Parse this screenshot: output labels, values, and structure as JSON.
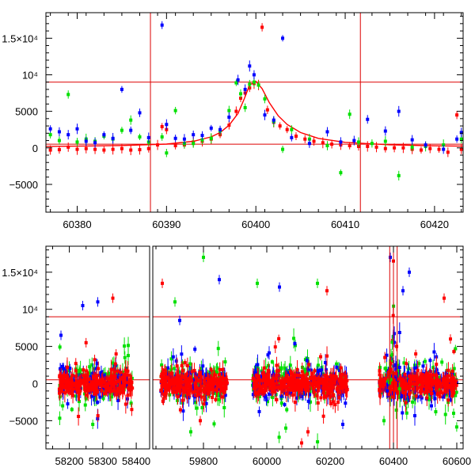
{
  "chart_data": [
    {
      "type": "scatter",
      "title": "",
      "xlabel": "",
      "ylabel": "",
      "xlim": [
        60376.5,
        60423.2
      ],
      "ylim": [
        -8800,
        18500
      ],
      "xticks": [
        60380,
        60390,
        60400,
        60410,
        60420
      ],
      "xtick_labels": [
        "60380",
        "60390",
        "60400",
        "60410",
        "60420"
      ],
      "yticks": [
        -5000,
        0,
        5000,
        10000,
        15000
      ],
      "ytick_labels": [
        "−5000",
        "0",
        "5000",
        "10⁴",
        "1.5×10⁴"
      ],
      "hlines": [
        9000,
        500
      ],
      "vlines": [
        60388.2,
        60411.7
      ],
      "colors": {
        "red": "#ff0000",
        "green": "#00e000",
        "blue": "#0000ff",
        "model": "#ff0000",
        "guide": "#dd0000"
      },
      "model_curve": {
        "x": [
          60376.5,
          60380,
          60385,
          60390,
          60393,
          60395,
          60396,
          60397,
          60398,
          60398.7,
          60399.3,
          60400,
          60400.7,
          60401.5,
          60402.5,
          60403.5,
          60405,
          60407,
          60410,
          60415,
          60420,
          60423.2
        ],
        "y": [
          200,
          240,
          320,
          520,
          900,
          1500,
          2100,
          3100,
          4700,
          6700,
          8600,
          9100,
          8100,
          6200,
          4400,
          3200,
          2100,
          1300,
          750,
          420,
          280,
          240
        ]
      },
      "series": [
        {
          "color": "red",
          "points": [
            [
              60377,
              -300
            ],
            [
              60378,
              -250
            ],
            [
              60379,
              100
            ],
            [
              60380,
              -200
            ],
            [
              60381,
              -100
            ],
            [
              60382,
              -200
            ],
            [
              60383,
              -300
            ],
            [
              60384,
              -200
            ],
            [
              60385,
              -100
            ],
            [
              60386,
              -300
            ],
            [
              60387,
              -250
            ],
            [
              60388,
              -100
            ],
            [
              60389,
              400
            ],
            [
              60389.5,
              2900
            ],
            [
              60390,
              2500
            ],
            [
              60391,
              300
            ],
            [
              60392,
              400
            ],
            [
              60393,
              800
            ],
            [
              60394,
              900
            ],
            [
              60395,
              1200
            ],
            [
              60396,
              1800
            ],
            [
              60397,
              3100
            ],
            [
              60397.8,
              5000
            ],
            [
              60398.3,
              6800
            ],
            [
              60398.8,
              7500
            ],
            [
              60399.3,
              8200
            ],
            [
              60399.8,
              8800
            ],
            [
              60400.3,
              8600
            ],
            [
              60400.7,
              16500
            ],
            [
              60401.3,
              5200
            ],
            [
              60402,
              3500
            ],
            [
              60402.7,
              3000
            ],
            [
              60403.5,
              2500
            ],
            [
              60404.5,
              1600
            ],
            [
              60405.5,
              1200
            ],
            [
              60406.5,
              900
            ],
            [
              60407.5,
              700
            ],
            [
              60408.5,
              500
            ],
            [
              60409.5,
              400
            ],
            [
              60410.5,
              300
            ],
            [
              60411.5,
              200
            ],
            [
              60412.5,
              200
            ],
            [
              60413.5,
              100
            ],
            [
              60414.5,
              -100
            ],
            [
              60415.5,
              0
            ],
            [
              60416.5,
              0
            ],
            [
              60417.5,
              -200
            ],
            [
              60418.5,
              -300
            ],
            [
              60419.5,
              -100
            ],
            [
              60420.5,
              -200
            ],
            [
              60421.5,
              -600
            ],
            [
              60422.5,
              4500
            ],
            [
              60423,
              -200
            ]
          ]
        },
        {
          "color": "green",
          "points": [
            [
              60377,
              1800
            ],
            [
              60378,
              1000
            ],
            [
              60379,
              7300
            ],
            [
              60380,
              800
            ],
            [
              60381,
              1200
            ],
            [
              60382,
              900
            ],
            [
              60383,
              1600
            ],
            [
              60384,
              1200
            ],
            [
              60385,
              2400
            ],
            [
              60386,
              3800
            ],
            [
              60387,
              1500
            ],
            [
              60388,
              800
            ],
            [
              60389.5,
              1500
            ],
            [
              60390,
              -700
            ],
            [
              60391,
              5100
            ],
            [
              60392,
              600
            ],
            [
              60393,
              600
            ],
            [
              60394,
              1100
            ],
            [
              60395,
              1300
            ],
            [
              60396,
              2300
            ],
            [
              60397,
              5100
            ],
            [
              60397.8,
              8900
            ],
            [
              60398.3,
              7400
            ],
            [
              60398.8,
              5500
            ],
            [
              60399.3,
              8700
            ],
            [
              60399.8,
              9000
            ],
            [
              60400.3,
              8600
            ],
            [
              60401,
              6700
            ],
            [
              60402,
              3600
            ],
            [
              60403,
              -200
            ],
            [
              60404,
              2500
            ],
            [
              60406,
              1200
            ],
            [
              60408,
              300
            ],
            [
              60409.5,
              -3400
            ],
            [
              60410.5,
              4600
            ],
            [
              60411.5,
              800
            ],
            [
              60413,
              600
            ],
            [
              60414.5,
              900
            ],
            [
              60416,
              -3800
            ],
            [
              60417.5,
              100
            ],
            [
              60419,
              200
            ],
            [
              60421,
              400
            ],
            [
              60423,
              1200
            ]
          ]
        },
        {
          "color": "blue",
          "points": [
            [
              60377,
              2600
            ],
            [
              60378,
              2200
            ],
            [
              60379,
              1800
            ],
            [
              60380,
              2600
            ],
            [
              60381,
              900
            ],
            [
              60382,
              700
            ],
            [
              60383,
              1800
            ],
            [
              60384,
              1300
            ],
            [
              60385,
              8000
            ],
            [
              60386,
              2400
            ],
            [
              60387,
              4800
            ],
            [
              60388,
              1400
            ],
            [
              60389.5,
              16800
            ],
            [
              60390,
              3200
            ],
            [
              60391,
              1300
            ],
            [
              60392,
              1200
            ],
            [
              60393,
              1800
            ],
            [
              60394,
              1700
            ],
            [
              60395,
              2700
            ],
            [
              60396,
              2500
            ],
            [
              60397,
              4200
            ],
            [
              60398,
              9300
            ],
            [
              60398.8,
              8000
            ],
            [
              60399.3,
              11200
            ],
            [
              60399.8,
              10000
            ],
            [
              60401,
              4500
            ],
            [
              60402,
              3800
            ],
            [
              60403,
              15000
            ],
            [
              60404,
              1400
            ],
            [
              60406,
              600
            ],
            [
              60408,
              2200
            ],
            [
              60409.5,
              800
            ],
            [
              60411,
              1000
            ],
            [
              60412.5,
              3900
            ],
            [
              60414.5,
              2300
            ],
            [
              60416,
              5000
            ],
            [
              60417.5,
              1100
            ],
            [
              60419,
              400
            ],
            [
              60421,
              -200
            ],
            [
              60422.5,
              1200
            ],
            [
              60423,
              2100
            ]
          ]
        }
      ]
    },
    {
      "type": "scatter",
      "title": "",
      "xlabel": "",
      "ylabel": "",
      "note": "broken x-axis with gaps between observing seasons",
      "segments": [
        {
          "xlim": [
            58130,
            58440
          ],
          "xticks": [
            58200,
            58300,
            58400
          ],
          "xtick_labels": [
            "58200",
            "58300",
            "58400"
          ]
        },
        {
          "xlim": [
            59640,
            60620
          ],
          "xticks": [
            59800,
            60000,
            60200,
            60400,
            60600
          ],
          "xtick_labels": [
            "59800",
            "60000",
            "60200",
            "60400",
            "60600"
          ]
        }
      ],
      "ylim": [
        -8800,
        18500
      ],
      "yticks": [
        -5000,
        0,
        5000,
        10000,
        15000
      ],
      "ytick_labels": [
        "−5000",
        "0",
        "5000",
        "10⁴",
        "1.5×10⁴"
      ],
      "hlines": [
        9000,
        500
      ],
      "vlines": [
        60388.2,
        60400.0,
        60411.7
      ],
      "seasons": [
        {
          "range": [
            58170,
            58390
          ]
        },
        {
          "range": [
            59665,
            59875
          ]
        },
        {
          "range": [
            59955,
            60255
          ]
        },
        {
          "range": [
            60355,
            60600
          ]
        }
      ],
      "scatter_amplitude": {
        "red": 1600,
        "green": 2600,
        "blue": 2200
      },
      "outliers": [
        {
          "color": "blue",
          "x": 58175,
          "y": 6500
        },
        {
          "color": "blue",
          "x": 58240,
          "y": 10500
        },
        {
          "color": "red",
          "x": 58250,
          "y": 5500
        },
        {
          "color": "blue",
          "x": 58285,
          "y": 11000
        },
        {
          "color": "red",
          "x": 58330,
          "y": 11500
        },
        {
          "color": "green",
          "x": 58270,
          "y": -5500
        },
        {
          "color": "green",
          "x": 58180,
          "y": -3000
        },
        {
          "color": "red",
          "x": 59670,
          "y": 13500
        },
        {
          "color": "green",
          "x": 59800,
          "y": 17000
        },
        {
          "color": "blue",
          "x": 59850,
          "y": 14000
        },
        {
          "color": "green",
          "x": 59710,
          "y": 11000
        },
        {
          "color": "green",
          "x": 59760,
          "y": -6500
        },
        {
          "color": "blue",
          "x": 59725,
          "y": 8500
        },
        {
          "color": "red",
          "x": 59790,
          "y": -5000
        },
        {
          "color": "green",
          "x": 59970,
          "y": 13500
        },
        {
          "color": "blue",
          "x": 60040,
          "y": 13000
        },
        {
          "color": "green",
          "x": 60160,
          "y": 13500
        },
        {
          "color": "red",
          "x": 60190,
          "y": 12500
        },
        {
          "color": "red",
          "x": 60130,
          "y": -6500
        },
        {
          "color": "green",
          "x": 60060,
          "y": -6000
        },
        {
          "color": "blue",
          "x": 60240,
          "y": -5500
        },
        {
          "color": "red",
          "x": 60110,
          "y": -8000
        },
        {
          "color": "blue",
          "x": 60390,
          "y": 17000
        },
        {
          "color": "red",
          "x": 60400,
          "y": 16500
        },
        {
          "color": "blue",
          "x": 60450,
          "y": 15000
        },
        {
          "color": "red",
          "x": 60560,
          "y": 11500
        },
        {
          "color": "blue",
          "x": 60430,
          "y": 12500
        },
        {
          "color": "red",
          "x": 60580,
          "y": 6000
        },
        {
          "color": "green",
          "x": 60590,
          "y": -4000
        },
        {
          "color": "blue",
          "x": 60520,
          "y": -3000
        },
        {
          "color": "green",
          "x": 60370,
          "y": -5000
        },
        {
          "color": "red",
          "x": 60410,
          "y": 5000
        }
      ],
      "event_peak": {
        "x": 60400,
        "y": 9100,
        "colors": [
          "red",
          "green",
          "blue"
        ]
      }
    }
  ]
}
